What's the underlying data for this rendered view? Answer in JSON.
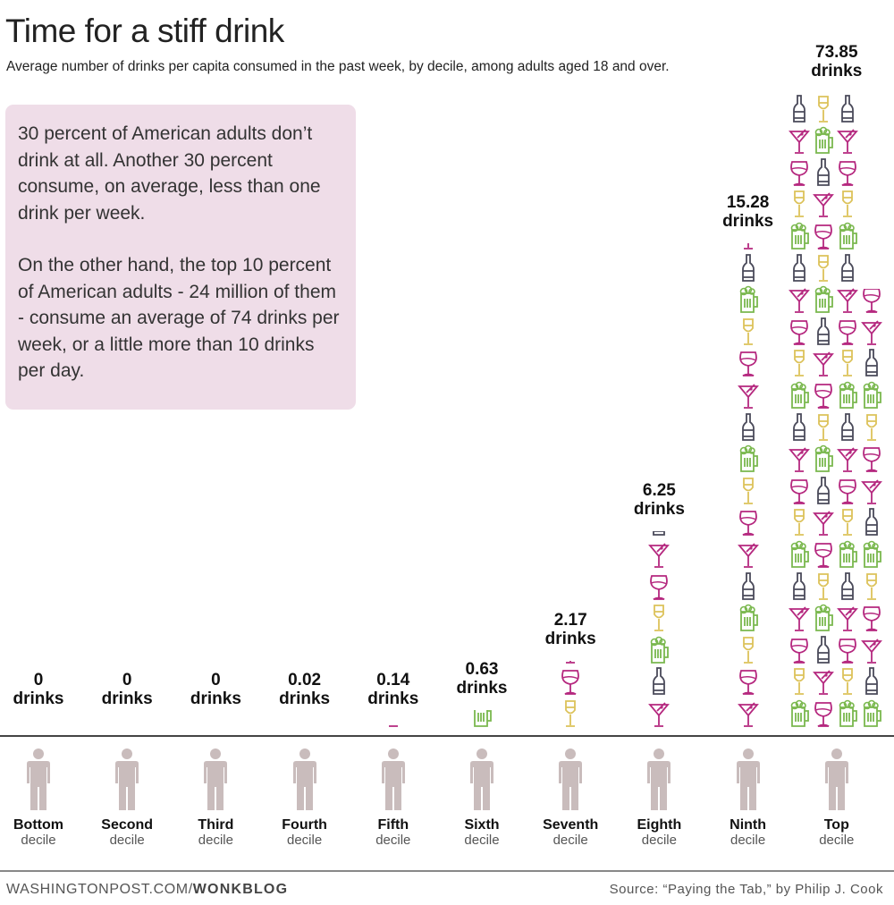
{
  "chart_data": {
    "type": "bar",
    "title": "Time for a stiff drink",
    "subtitle": "Average number of drinks per capita consumed in the past week, by decile, among adults aged 18 and over.",
    "unit_label": "drinks",
    "categories": [
      {
        "name": "Bottom",
        "sub": "decile"
      },
      {
        "name": "Second",
        "sub": "decile"
      },
      {
        "name": "Third",
        "sub": "decile"
      },
      {
        "name": "Fourth",
        "sub": "decile"
      },
      {
        "name": "Fifth",
        "sub": "decile"
      },
      {
        "name": "Sixth",
        "sub": "decile"
      },
      {
        "name": "Seventh",
        "sub": "decile"
      },
      {
        "name": "Eighth",
        "sub": "decile"
      },
      {
        "name": "Ninth",
        "sub": "decile"
      },
      {
        "name": "Top",
        "sub": "decile"
      }
    ],
    "values": [
      0,
      0,
      0,
      0.02,
      0.14,
      0.63,
      2.17,
      6.25,
      15.28,
      73.85
    ],
    "value_labels": [
      "0",
      "0",
      "0",
      "0.02",
      "0.14",
      "0.63",
      "2.17",
      "6.25",
      "15.28",
      "73.85"
    ],
    "icon_types": [
      "martini-glass",
      "wine-glass",
      "white-wine-glass",
      "beer-mug",
      "beer-bottle"
    ],
    "colors": {
      "martini-glass": "#b5287f",
      "wine-glass": "#b5287f",
      "white-wine-glass": "#dcc25a",
      "beer-mug": "#7ab84e",
      "beer-bottle": "#4a4a5a",
      "person": "#c9bcbc",
      "note_bg": "#efdde8"
    }
  },
  "note": {
    "p1": "30 percent of American adults don’t drink at all. Another 30 percent consume, on average, less than one drink per week.",
    "p2": "On the other hand, the top 10 percent of American adults - 24 million of them - consume an average of 74 drinks per week, or a little more than 10 drinks per day."
  },
  "footer": {
    "site": "WASHINGTONPOST.COM/",
    "blog": "WONKBLOG",
    "source": "Source: “Paying the Tab,” by Philip J. Cook"
  }
}
